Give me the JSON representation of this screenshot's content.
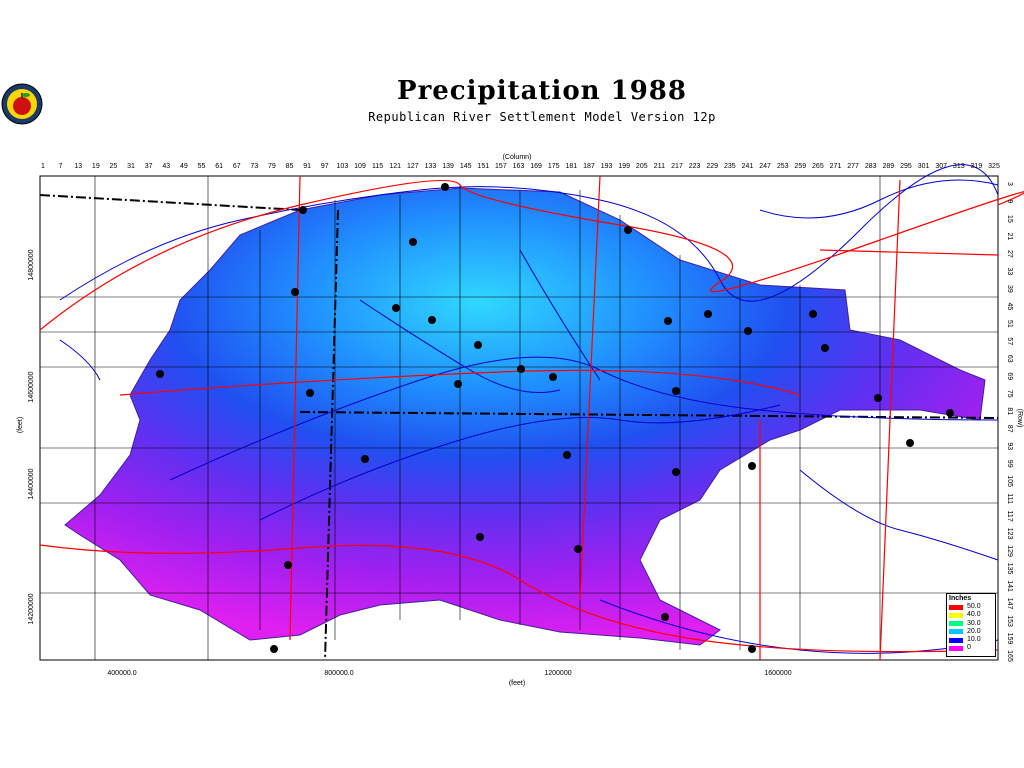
{
  "title": "Precipitation  1988",
  "subtitle": "Republican River Settlement Model Version 12p",
  "axis": {
    "column_label": "(Column)",
    "row_label": "(Row)",
    "x_label": "(feet)",
    "y_label": "(feet)",
    "column_ticks": [
      "1",
      "7",
      "13",
      "19",
      "25",
      "31",
      "37",
      "43",
      "49",
      "55",
      "61",
      "67",
      "73",
      "79",
      "85",
      "91",
      "97",
      "103",
      "109",
      "115",
      "121",
      "127",
      "133",
      "139",
      "145",
      "151",
      "157",
      "163",
      "169",
      "175",
      "181",
      "187",
      "193",
      "199",
      "205",
      "211",
      "217",
      "223",
      "229",
      "235",
      "241",
      "247",
      "253",
      "259",
      "265",
      "271",
      "277",
      "283",
      "289",
      "295",
      "301",
      "307",
      "313",
      "319",
      "325"
    ],
    "row_ticks": [
      "3",
      "9",
      "15",
      "21",
      "27",
      "33",
      "39",
      "45",
      "51",
      "57",
      "63",
      "69",
      "75",
      "81",
      "87",
      "93",
      "99",
      "105",
      "111",
      "117",
      "123",
      "129",
      "135",
      "141",
      "147",
      "153",
      "159",
      "165"
    ],
    "x_ticks": [
      "400000.0",
      "800000.0",
      "1200000",
      "1600000"
    ],
    "y_ticks": [
      "14800000",
      "14600000",
      "14400000",
      "14200000"
    ]
  },
  "legend": {
    "title": "Inches",
    "items": [
      {
        "label": "50.0",
        "color": "#ff0000"
      },
      {
        "label": "40.0",
        "color": "#ffff00"
      },
      {
        "label": "30.0",
        "color": "#00ff80"
      },
      {
        "label": "20.0",
        "color": "#00c8ff"
      },
      {
        "label": "10.0",
        "color": "#0000ff"
      },
      {
        "label": "0",
        "color": "#ff00ff"
      }
    ]
  },
  "colors": {
    "river": "#0000cc",
    "road": "#ff0000",
    "county": "#000000",
    "high_precip": "#30d0ff",
    "mid_precip": "#2060f0",
    "low_precip": "#a020f0",
    "lowest_precip": "#e020f0"
  }
}
